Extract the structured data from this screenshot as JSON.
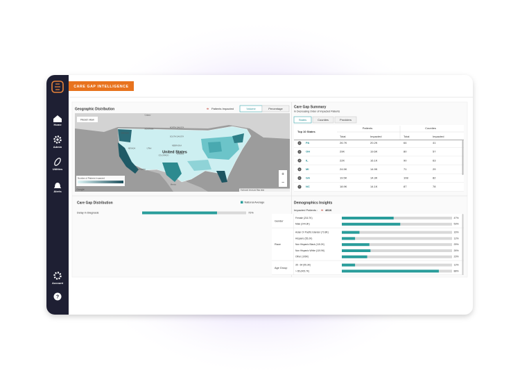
{
  "brand": "CARE GAP INTELLIGENCE",
  "sidebar": [
    "Home",
    "Admin",
    "Utilities",
    "Alerts",
    "Account"
  ],
  "geo": {
    "title": "Geographic Distribution",
    "legend": "Patients Impacted",
    "toggles": [
      "Volume",
      "Percentage"
    ],
    "reset": "Reset view",
    "country": "United States",
    "scale_title": "Number of Patients Impacted",
    "map_labels": [
      "Calgary",
      "MONTANA",
      "NORTH DAKOTA",
      "SOUTH DAKOTA",
      "NEBRASKA",
      "KANSAS",
      "OREGON",
      "NEVADA",
      "UTAH",
      "COLORADO",
      "Los Angeles",
      "Mexico",
      "Google"
    ],
    "attribution": "Keyboard shortcuts   Map data"
  },
  "summary": {
    "title": "Care Gap Summary",
    "subtitle": "In Decreasing Order of Impacted Patients",
    "tabs": [
      "States",
      "Counties",
      "Providers"
    ],
    "row_header": "Top 10 States",
    "groups": [
      "Patients",
      "Counties"
    ],
    "columns": [
      "Total",
      "Impacted",
      "Total",
      "Impacted"
    ],
    "rows": [
      {
        "rank": "2",
        "state": "PA",
        "cells": [
          "26.7K",
          "20.2K",
          "64",
          "41"
        ]
      },
      {
        "rank": "3",
        "state": "OH",
        "cells": [
          "29K",
          "19.6K",
          "80",
          "57"
        ]
      },
      {
        "rank": "4",
        "state": "IL",
        "cells": [
          "22K",
          "16.1K",
          "90",
          "63"
        ]
      },
      {
        "rank": "5",
        "state": "MI",
        "cells": [
          "24.5K",
          "14.9K",
          "71",
          "29"
        ]
      },
      {
        "rank": "6",
        "state": "GA",
        "cells": [
          "19.5K",
          "14.3K",
          "108",
          "82"
        ]
      },
      {
        "rank": "7",
        "state": "NC",
        "cells": [
          "18.9K",
          "14.1K",
          "87",
          "78"
        ]
      }
    ]
  },
  "distribution": {
    "title": "Care Gap Distribution",
    "legend": "National Average",
    "rows": [
      {
        "label": "Delay in Diagnosis",
        "value": 72,
        "value_label": "72%"
      }
    ]
  },
  "demographics": {
    "title": "Demographics Insights",
    "impacted_label": "Impacted Patients :",
    "impacted": "461K",
    "groups": [
      {
        "name": "Gender",
        "rows": [
          {
            "label": "Female (216.7K)",
            "value": 47,
            "value_label": "47%"
          },
          {
            "label": "Male (244.3K)",
            "value": 53,
            "value_label": "53%"
          }
        ]
      },
      {
        "name": "Race",
        "rows": [
          {
            "label": "Asian Or Pacific Islander (73.8K)",
            "value": 16,
            "value_label": "16%"
          },
          {
            "label": "Hispanic (55.2K)",
            "value": 12,
            "value_label": "12%"
          },
          {
            "label": "Non Hispanic Black (115.2K)",
            "value": 25,
            "value_label": "25%"
          },
          {
            "label": "Non Hispanic White (119.9K)",
            "value": 26,
            "value_label": "26%"
          },
          {
            "label": "Other (106K)",
            "value": 23,
            "value_label": "23%"
          }
        ]
      },
      {
        "name": "Age Group",
        "rows": [
          {
            "label": "35 - 64 (55.3K)",
            "value": 12,
            "value_label": "12%"
          },
          {
            "label": "> 65 (405.7K)",
            "value": 88,
            "value_label": "88%"
          }
        ]
      }
    ]
  }
}
